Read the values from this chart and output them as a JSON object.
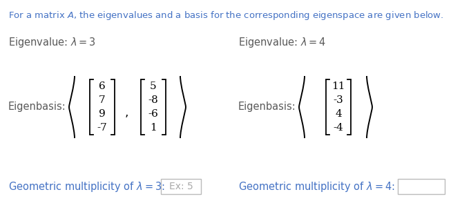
{
  "bg_color": "#ffffff",
  "title": "For a matrix $\\mathit{A}$, the eigenvalues and a basis for the corresponding eigenspace are given below.",
  "title_color": "#4472C4",
  "ev1_label": "Eigenvalue: $\\lambda = 3$",
  "ev2_label": "Eigenvalue: $\\lambda = 4$",
  "eb1_label": "Eigenbasis:",
  "eb2_label": "Eigenbasis:",
  "vec1a": [
    "6",
    "7",
    "9",
    "-7"
  ],
  "vec1b": [
    "5",
    "-8",
    "-6",
    "1"
  ],
  "vec2a": [
    "11",
    "-3",
    "4",
    "-4"
  ],
  "gm1_label": "Geometric multiplicity of $\\lambda = 3$:",
  "gm2_label": "Geometric multiplicity of $\\lambda = 4$:",
  "gm1_example": "Ex: 5",
  "text_color": "#595959",
  "gm_color": "#4472C4"
}
